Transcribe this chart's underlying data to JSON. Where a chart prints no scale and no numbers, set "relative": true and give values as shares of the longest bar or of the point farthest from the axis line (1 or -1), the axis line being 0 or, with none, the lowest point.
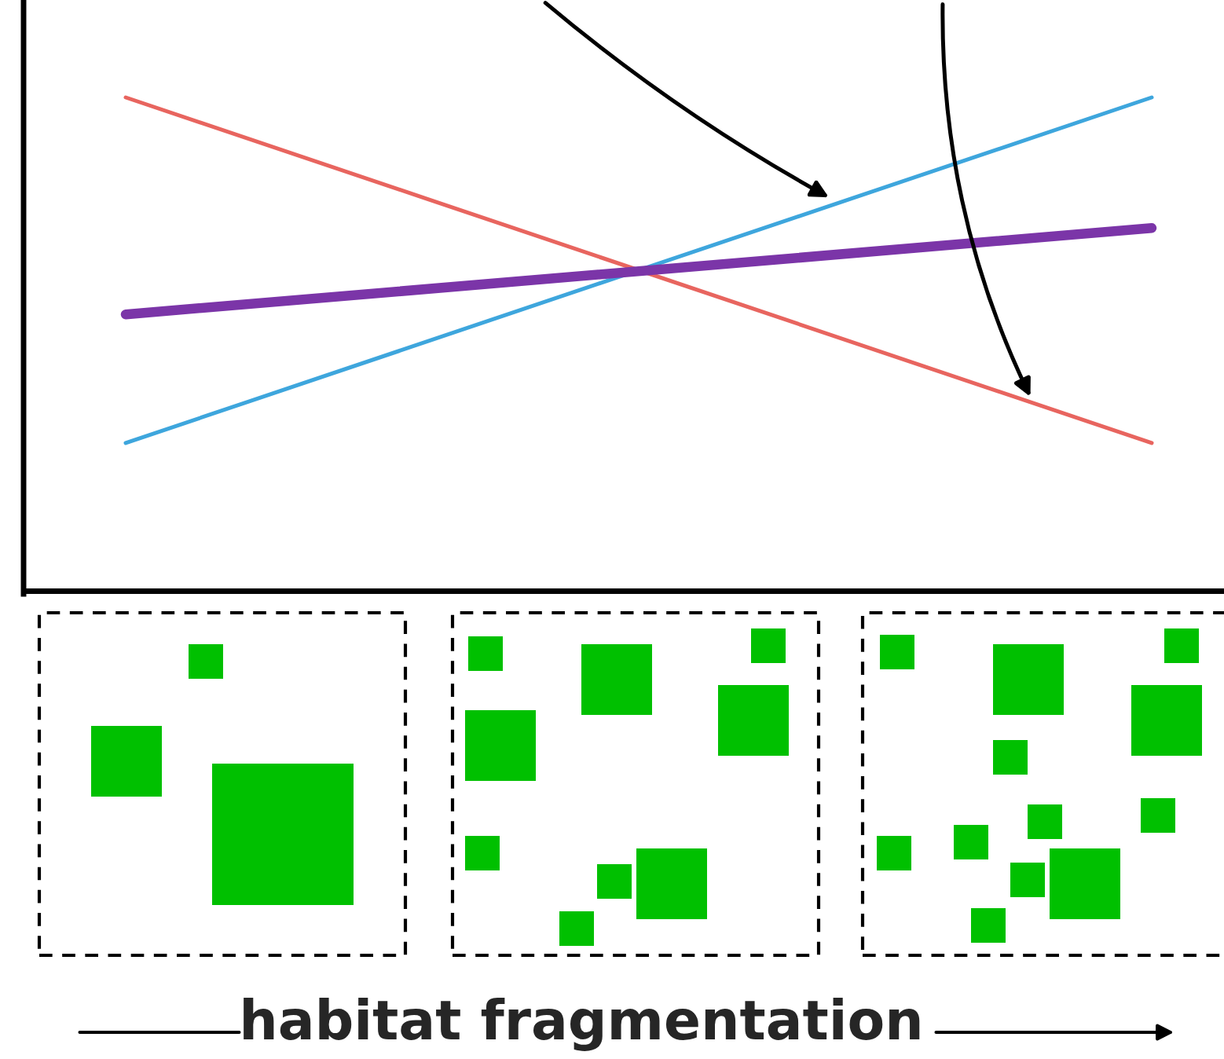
{
  "chart_data": {
    "type": "line",
    "relative": true,
    "annotations": [
      "habitat fragmentation"
    ],
    "categories": [
      null,
      null
    ],
    "grid": false,
    "ref_lines": [
      {
        "axis": "y",
        "value": 0,
        "color": "#000000"
      }
    ],
    "legend": false,
    "marker": "none",
    "line_style": "solid",
    "series": [
      {
        "color": "#e8655f",
        "values": [
          1,
          0.304
        ]
      },
      {
        "color": "#3ea6dd",
        "values": [
          0.304,
          1
        ]
      },
      {
        "color": "#7b35a8",
        "values": [
          0.563,
          0.737
        ]
      }
    ]
  }
}
